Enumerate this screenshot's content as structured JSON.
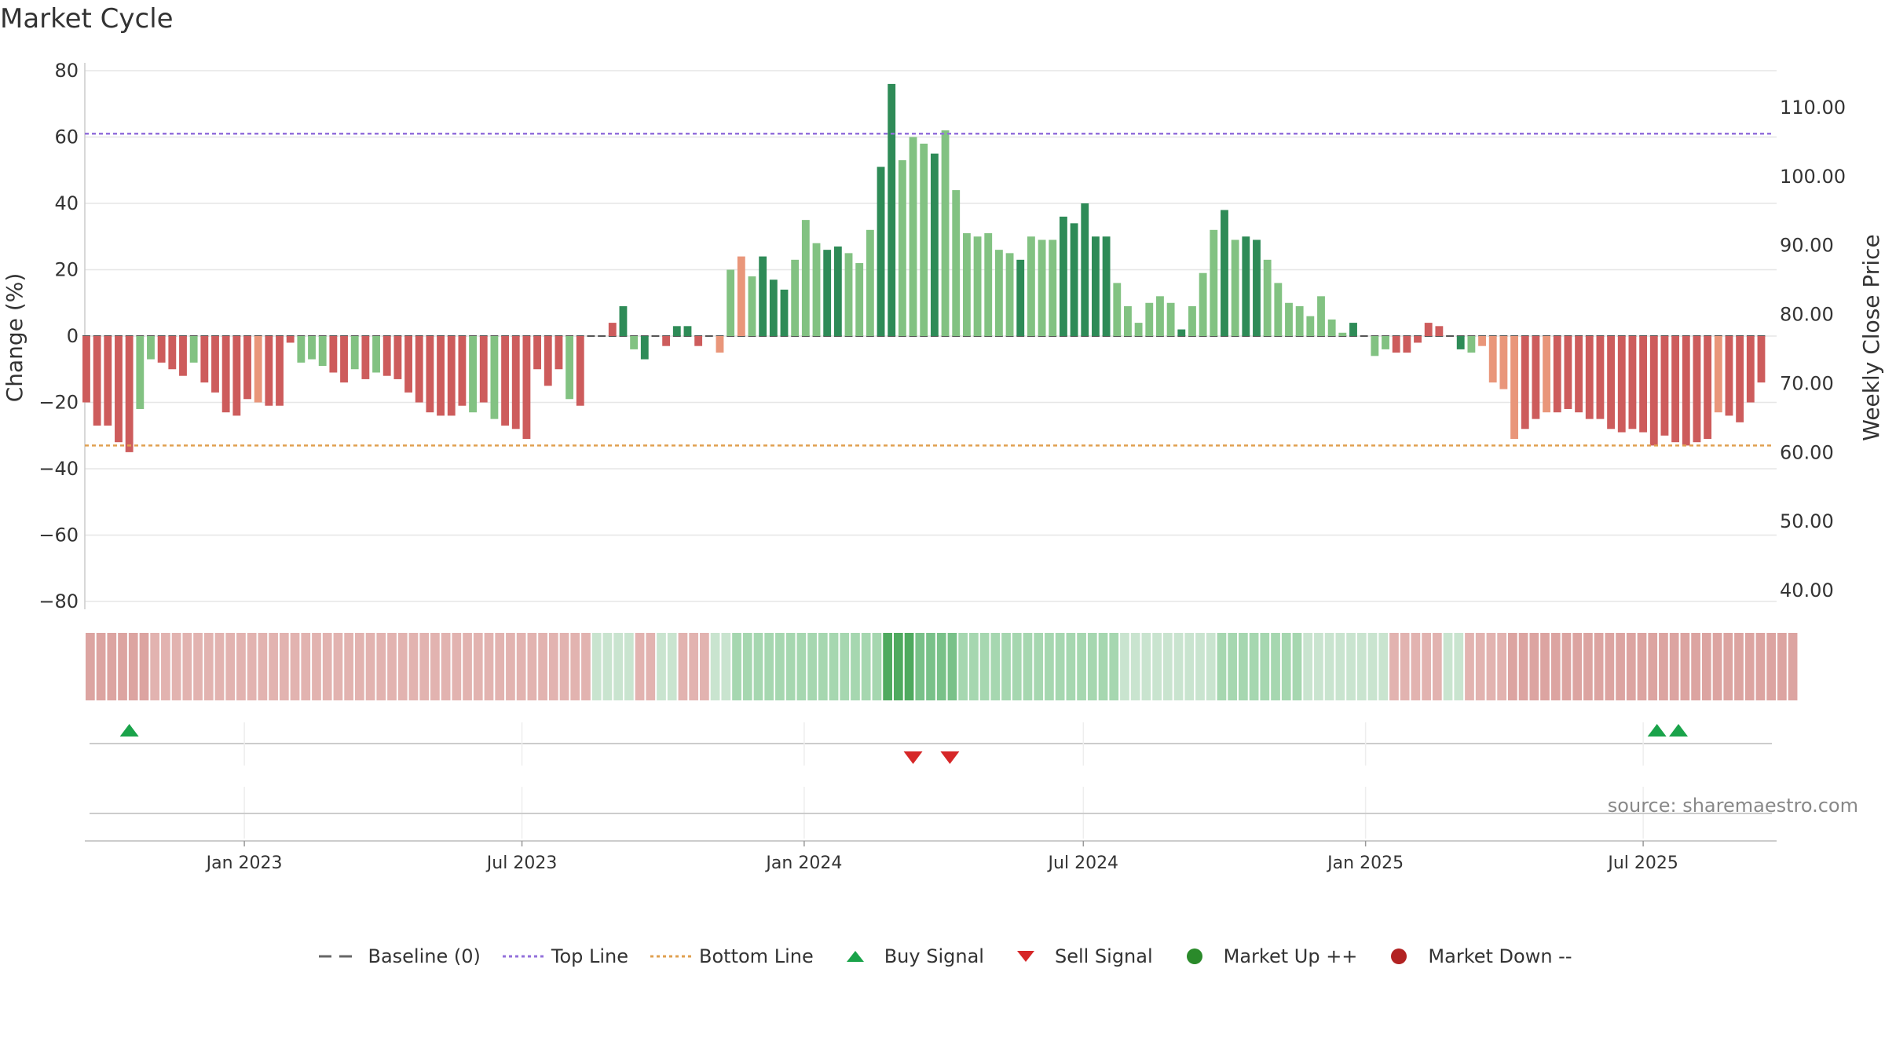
{
  "title": "Market Cycle",
  "source_text": "source: sharemaestro.com",
  "colors": {
    "strong_up": "#2e8b57",
    "weak_up": "#82c282",
    "strong_down": "#cd5c5c",
    "weak_down": "#e9967a",
    "top_line": "#9370db",
    "bottom_line": "#e0a050",
    "buy": "#1aa34a",
    "sell": "#d62728",
    "market_up": "#2a8a2a",
    "market_down": "#b22222"
  },
  "legend": [
    {
      "key": "baseline",
      "label": "Baseline (0)",
      "icon": "dash-line-icon"
    },
    {
      "key": "top",
      "label": "Top Line",
      "icon": "dot-line-icon"
    },
    {
      "key": "bottom",
      "label": "Bottom Line",
      "icon": "dot-line-icon"
    },
    {
      "key": "buy",
      "label": "Buy Signal",
      "icon": "triangle-up-icon"
    },
    {
      "key": "sell",
      "label": "Sell Signal",
      "icon": "triangle-down-icon"
    },
    {
      "key": "mup",
      "label": "Market Up ++",
      "icon": "circle-icon"
    },
    {
      "key": "mdown",
      "label": "Market Down --",
      "icon": "circle-icon"
    }
  ],
  "chart_data": {
    "type": "bar",
    "title": "Market Cycle",
    "ylabel": "Change (%)",
    "y2label": "Weekly Close Price",
    "ylim": [
      -80,
      80
    ],
    "yticks": [
      "80",
      "60",
      "40",
      "20",
      "0",
      "−20",
      "−40",
      "−60",
      "−80"
    ],
    "y2lim": [
      40,
      110
    ],
    "y2ticks": [
      "110.00",
      "100.00",
      "90.00",
      "80.00",
      "70.00",
      "60.00",
      "50.00",
      "40.00"
    ],
    "x_start": "2022-09-19",
    "x_end": "2025-09-26",
    "xticks": [
      {
        "date": "2023-01-01",
        "label": "Jan 2023"
      },
      {
        "date": "2023-07-01",
        "label": "Jul 2023"
      },
      {
        "date": "2024-01-01",
        "label": "Jan 2024"
      },
      {
        "date": "2024-07-01",
        "label": "Jul 2024"
      },
      {
        "date": "2025-01-01",
        "label": "Jan 2025"
      },
      {
        "date": "2025-07-01",
        "label": "Jul 2025"
      }
    ],
    "first_week": "2022-09-20",
    "top_line": 61,
    "bottom_line": -33,
    "grid": true,
    "bar_types": "s=strong down (dark red), w=weak down (light red), S=strong up (dark green), W=weak up (light green)",
    "values": [
      -20,
      -27,
      -27,
      -32,
      -35,
      -22,
      -7,
      -8,
      -10,
      -12,
      -8,
      -14,
      -17,
      -23,
      -24,
      -19,
      -20,
      -21,
      -21,
      -2,
      -8,
      -7,
      -9,
      -11,
      -14,
      -10,
      -13,
      -11,
      -12,
      -13,
      -17,
      -20,
      -23,
      -24,
      -24,
      -21,
      -23,
      -20,
      -25,
      -27,
      -28,
      -31,
      -10,
      -15,
      -10,
      -19,
      -21,
      0,
      0,
      4,
      9,
      -4,
      -7,
      0,
      -3,
      3,
      3,
      -3,
      0,
      -5,
      20,
      24,
      18,
      24,
      17,
      14,
      23,
      35,
      28,
      26,
      27,
      25,
      22,
      32,
      51,
      76,
      53,
      60,
      58,
      55,
      62,
      44,
      31,
      30,
      31,
      26,
      25,
      23,
      30,
      29,
      29,
      36,
      34,
      40,
      30,
      30,
      16,
      9,
      4,
      10,
      12,
      10,
      2,
      9,
      19,
      32,
      38,
      29,
      30,
      29,
      23,
      16,
      10,
      9,
      6,
      12,
      5,
      1,
      4,
      0,
      -6,
      -4,
      -5,
      -5,
      -2,
      4,
      3,
      0,
      -4,
      -5,
      -3,
      -14,
      -16,
      -31,
      -28,
      -25,
      -23,
      -23,
      -22,
      -23,
      -25,
      -25,
      -28,
      -29,
      -28,
      -29,
      -33,
      -30,
      -32,
      -33,
      -32,
      -31,
      -23,
      -24,
      -26,
      -20,
      -14
    ],
    "bar_types_seq": "sssssWWsssWssssswsssWWWssWsWssssssssWsWssssssWsWssSWSssSSsWwWwWSSSWWWSSWWWSSWWWSWWWWWWWSWWWSSSSSWWWWWWSWWWSWSSWWWWWWWWSWWWssssssSWwwwwsswssssssssssssssswsssssssww",
    "heatmap_levels": [
      2,
      2,
      2,
      2,
      2,
      2,
      1,
      1,
      1,
      1,
      1,
      1,
      1,
      1,
      1,
      1,
      1,
      1,
      1,
      1,
      1,
      1,
      1,
      1,
      1,
      1,
      1,
      1,
      1,
      1,
      1,
      1,
      1,
      1,
      1,
      1,
      1,
      1,
      1,
      1,
      1,
      1,
      1,
      1,
      1,
      1,
      1,
      -1,
      -1,
      -1,
      -1,
      1,
      1,
      -1,
      -1,
      1,
      1,
      1,
      -1,
      -1,
      -2,
      -2,
      -2,
      -2,
      -2,
      -2,
      -2,
      -2,
      -2,
      -2,
      -2,
      -2,
      -2,
      -2,
      -4,
      -4,
      -4,
      -3,
      -3,
      -3,
      -3,
      -2,
      -2,
      -2,
      -2,
      -2,
      -2,
      -2,
      -2,
      -2,
      -2,
      -2,
      -2,
      -2,
      -2,
      -2,
      -1,
      -1,
      -1,
      -1,
      -1,
      -1,
      -1,
      -1,
      -1,
      -2,
      -2,
      -2,
      -2,
      -2,
      -2,
      -2,
      -2,
      -1,
      -1,
      -1,
      -1,
      -1,
      -1,
      -1,
      -1,
      1,
      1,
      1,
      1,
      1,
      -1,
      -1,
      1,
      1,
      1,
      1,
      2,
      2,
      2,
      2,
      2,
      2,
      2,
      2,
      2,
      2,
      2,
      2,
      2,
      2,
      2,
      2,
      2,
      2,
      2,
      2,
      2,
      2,
      2,
      2,
      2,
      2,
      2
    ],
    "buy_signals": [
      "2022-10-18",
      "2025-07-10",
      "2025-07-24"
    ],
    "sell_signals": [
      "2024-03-12",
      "2024-04-05"
    ]
  }
}
